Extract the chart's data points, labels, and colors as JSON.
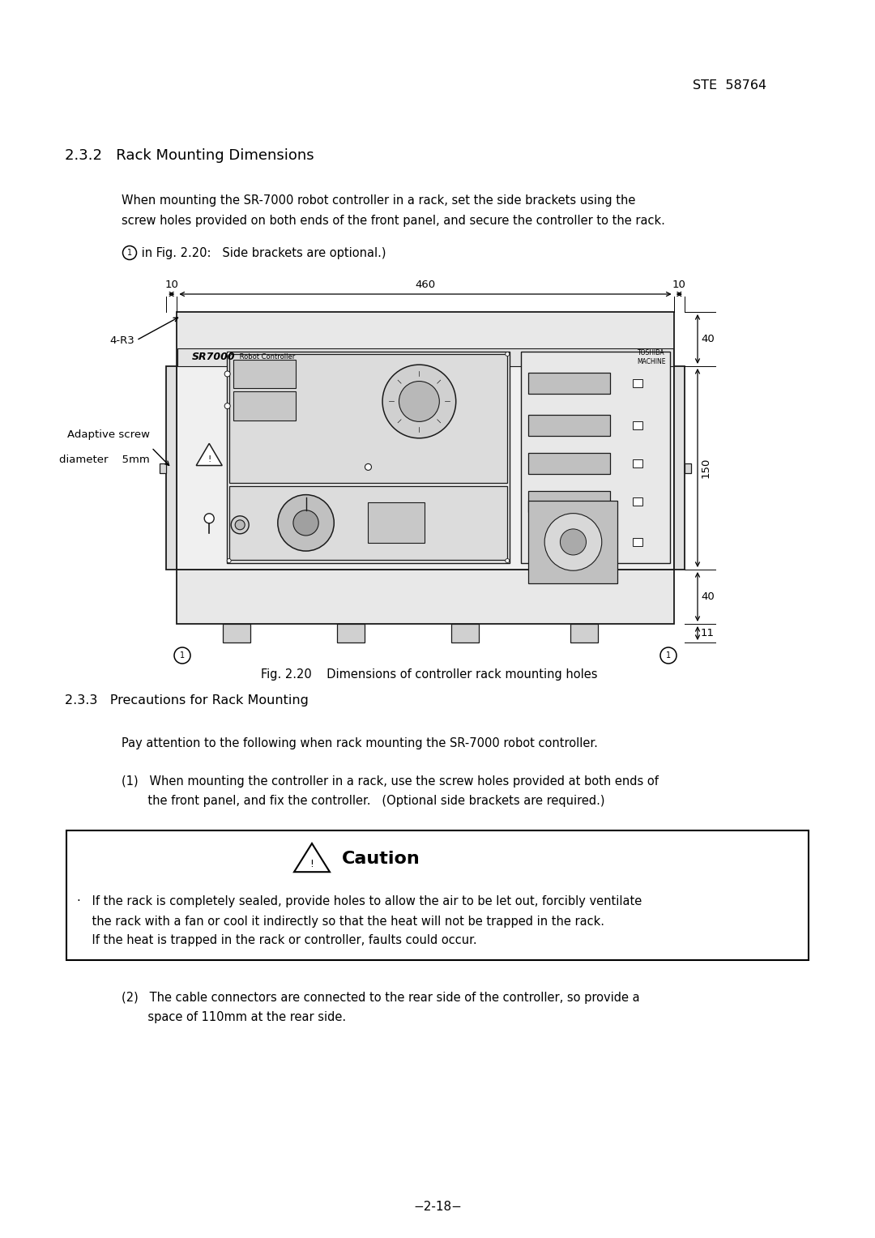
{
  "page_width": 10.8,
  "page_height": 15.28,
  "background": "#ffffff",
  "header_text": "STE  58764",
  "section_title": "2.3.2   Rack Mounting Dimensions",
  "para1_line1": "When mounting the SR-7000 robot controller in a rack, set the side brackets using the",
  "para1_line2": "screw holes provided on both ends of the front panel, and secure the controller to the rack.",
  "circle1_note_suffix": " in Fig. 2.20:   Side brackets are optional.)",
  "fig_caption": "Fig. 2.20    Dimensions of controller rack mounting holes",
  "section233_title": "2.3.3   Precautions for Rack Mounting",
  "para233": "Pay attention to the following when rack mounting the SR-7000 robot controller.",
  "item1_line1": "(1)   When mounting the controller in a rack, use the screw holes provided at both ends of",
  "item1_line2": "       the front panel, and fix the controller.   (Optional side brackets are required.)",
  "caution_title": "Caution",
  "bullet_line1": "·   If the rack is completely sealed, provide holes to allow the air to be let out, forcibly ventilate",
  "bullet_line2": "    the rack with a fan or cool it indirectly so that the heat will not be trapped in the rack.",
  "bullet_line3": "    If the heat is trapped in the rack or controller, faults could occur.",
  "item2_line1": "(2)   The cable connectors are connected to the rear side of the controller, so provide a",
  "item2_line2": "       space of 110mm at the rear side.",
  "footer": "−2-18−",
  "dim_10a": "10",
  "dim_460": "460",
  "dim_10b": "10",
  "dim_150": "150",
  "dim_40a": "40",
  "dim_40b": "40",
  "dim_11": "11",
  "label_4r3": "4-R3",
  "label_screw_line1": "Adaptive screw",
  "label_screw_line2": "diameter    5mm",
  "sr_label_big": "SR7000",
  "sr_label_small": " Robot Controller",
  "toshiba_label": "TOSHIBA\nMACHINE"
}
